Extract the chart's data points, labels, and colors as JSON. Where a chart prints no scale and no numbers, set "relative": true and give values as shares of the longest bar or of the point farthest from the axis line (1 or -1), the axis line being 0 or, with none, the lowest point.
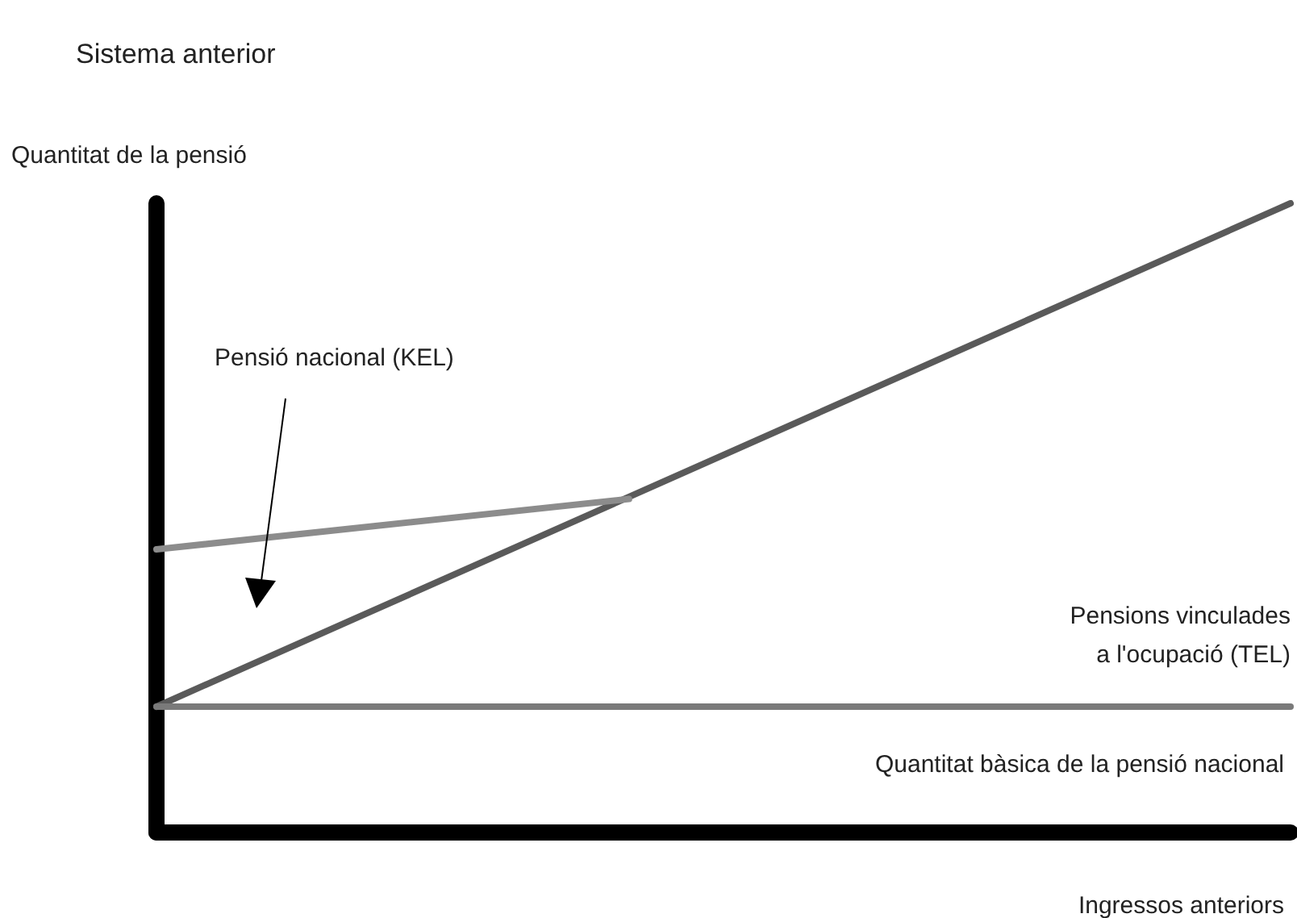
{
  "chart_data": {
    "type": "line",
    "title": "Sistema anterior",
    "ylabel": "Quantitat de la pensió",
    "xlabel": "Ingressos anteriors",
    "relative": true,
    "categories": [
      null,
      null,
      null,
      null,
      null,
      null,
      null,
      null,
      null,
      null,
      null,
      null,
      null
    ],
    "series": [
      {
        "color": "#5a5a5a",
        "values": [
          0.2,
          null,
          null,
          null,
          null,
          null,
          null,
          null,
          null,
          null,
          null,
          null,
          1
        ]
      },
      {
        "color": "#8c8c8c",
        "values": [
          0.45,
          null,
          null,
          null,
          null,
          0.53,
          null,
          null,
          null,
          null,
          null,
          null,
          null
        ]
      },
      {
        "color": "#7a7a7a",
        "values": [
          0.2,
          null,
          null,
          null,
          null,
          null,
          null,
          null,
          null,
          null,
          null,
          null,
          0.2
        ]
      }
    ],
    "annotations": [
      "Pensió nacional (KEL)",
      "Pensions vinculades\na l'ocupació (TEL)",
      "Quantitat bàsica de la pensió nacional"
    ],
    "grid": false,
    "marker": "none",
    "line_style": "solid"
  }
}
